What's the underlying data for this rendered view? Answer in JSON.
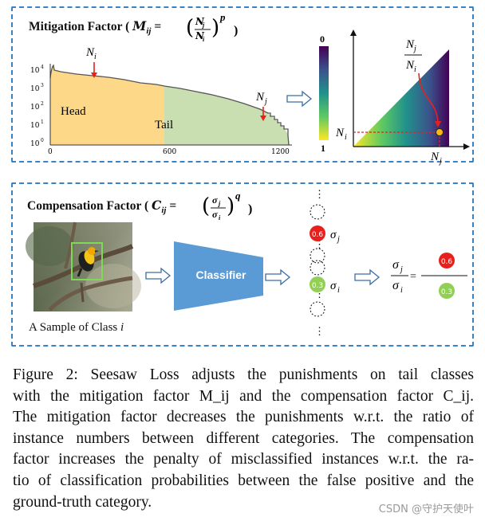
{
  "mitigation": {
    "title": "Mitigation Factor",
    "formula_lhs": "M",
    "formula_sub": "ij",
    "frac_num": "N",
    "frac_num_sub": "j",
    "frac_den": "N",
    "frac_den_sub": "i",
    "exponent": "p",
    "chart_labels": {
      "head": "Head",
      "tail": "Tail",
      "x_ticks": [
        "0",
        "600",
        "1200"
      ],
      "y_ticks": [
        "10",
        "10",
        "10",
        "10",
        "10"
      ],
      "y_exps": [
        "4",
        "3",
        "2",
        "1",
        "0"
      ],
      "ni": "N",
      "ni_sub": "i",
      "nj": "N",
      "nj_sub": "j"
    },
    "colorbar": {
      "top": "0",
      "bottom": "1"
    },
    "heatmap": {
      "frac_num": "N",
      "frac_num_sub": "j",
      "frac_den": "N",
      "frac_den_sub": "i",
      "ni": "N",
      "ni_sub": "i",
      "nj": "N",
      "nj_sub": "j"
    }
  },
  "compensation": {
    "title": "Compensation Factor",
    "formula_lhs": "C",
    "formula_sub": "ij",
    "frac_num": "σ",
    "frac_num_sub": "j",
    "frac_den": "σ",
    "frac_den_sub": "i",
    "exponent": "q",
    "sample_caption": "A Sample of Class",
    "sample_class": "i",
    "classifier_label": "Classifier",
    "score_high": "0.6",
    "score_low": "0.3",
    "sigma_j": "σ",
    "sigma_j_sub": "j",
    "sigma_i": "σ",
    "sigma_i_sub": "i",
    "ratio_eq": "=",
    "colors": {
      "red": "#e8201c",
      "green": "#92cf55",
      "classifier": "#5b9bd5",
      "border": "#3b82c4"
    }
  },
  "caption": {
    "lines": [
      "Figure 2:  Seesaw Loss adjusts the punishments on tail classes",
      "with the mitigation factor M_ij and the compensation factor C_ij.",
      "The mitigation factor decreases the punishments w.r.t. the ratio of",
      "instance numbers between different categories. The compensation",
      "factor increases the penalty of misclassified instances w.r.t. the ra-",
      "tio of classification probabilities between the false positive and the",
      "ground-truth category."
    ]
  },
  "watermark": "CSDN @守护天使叶"
}
